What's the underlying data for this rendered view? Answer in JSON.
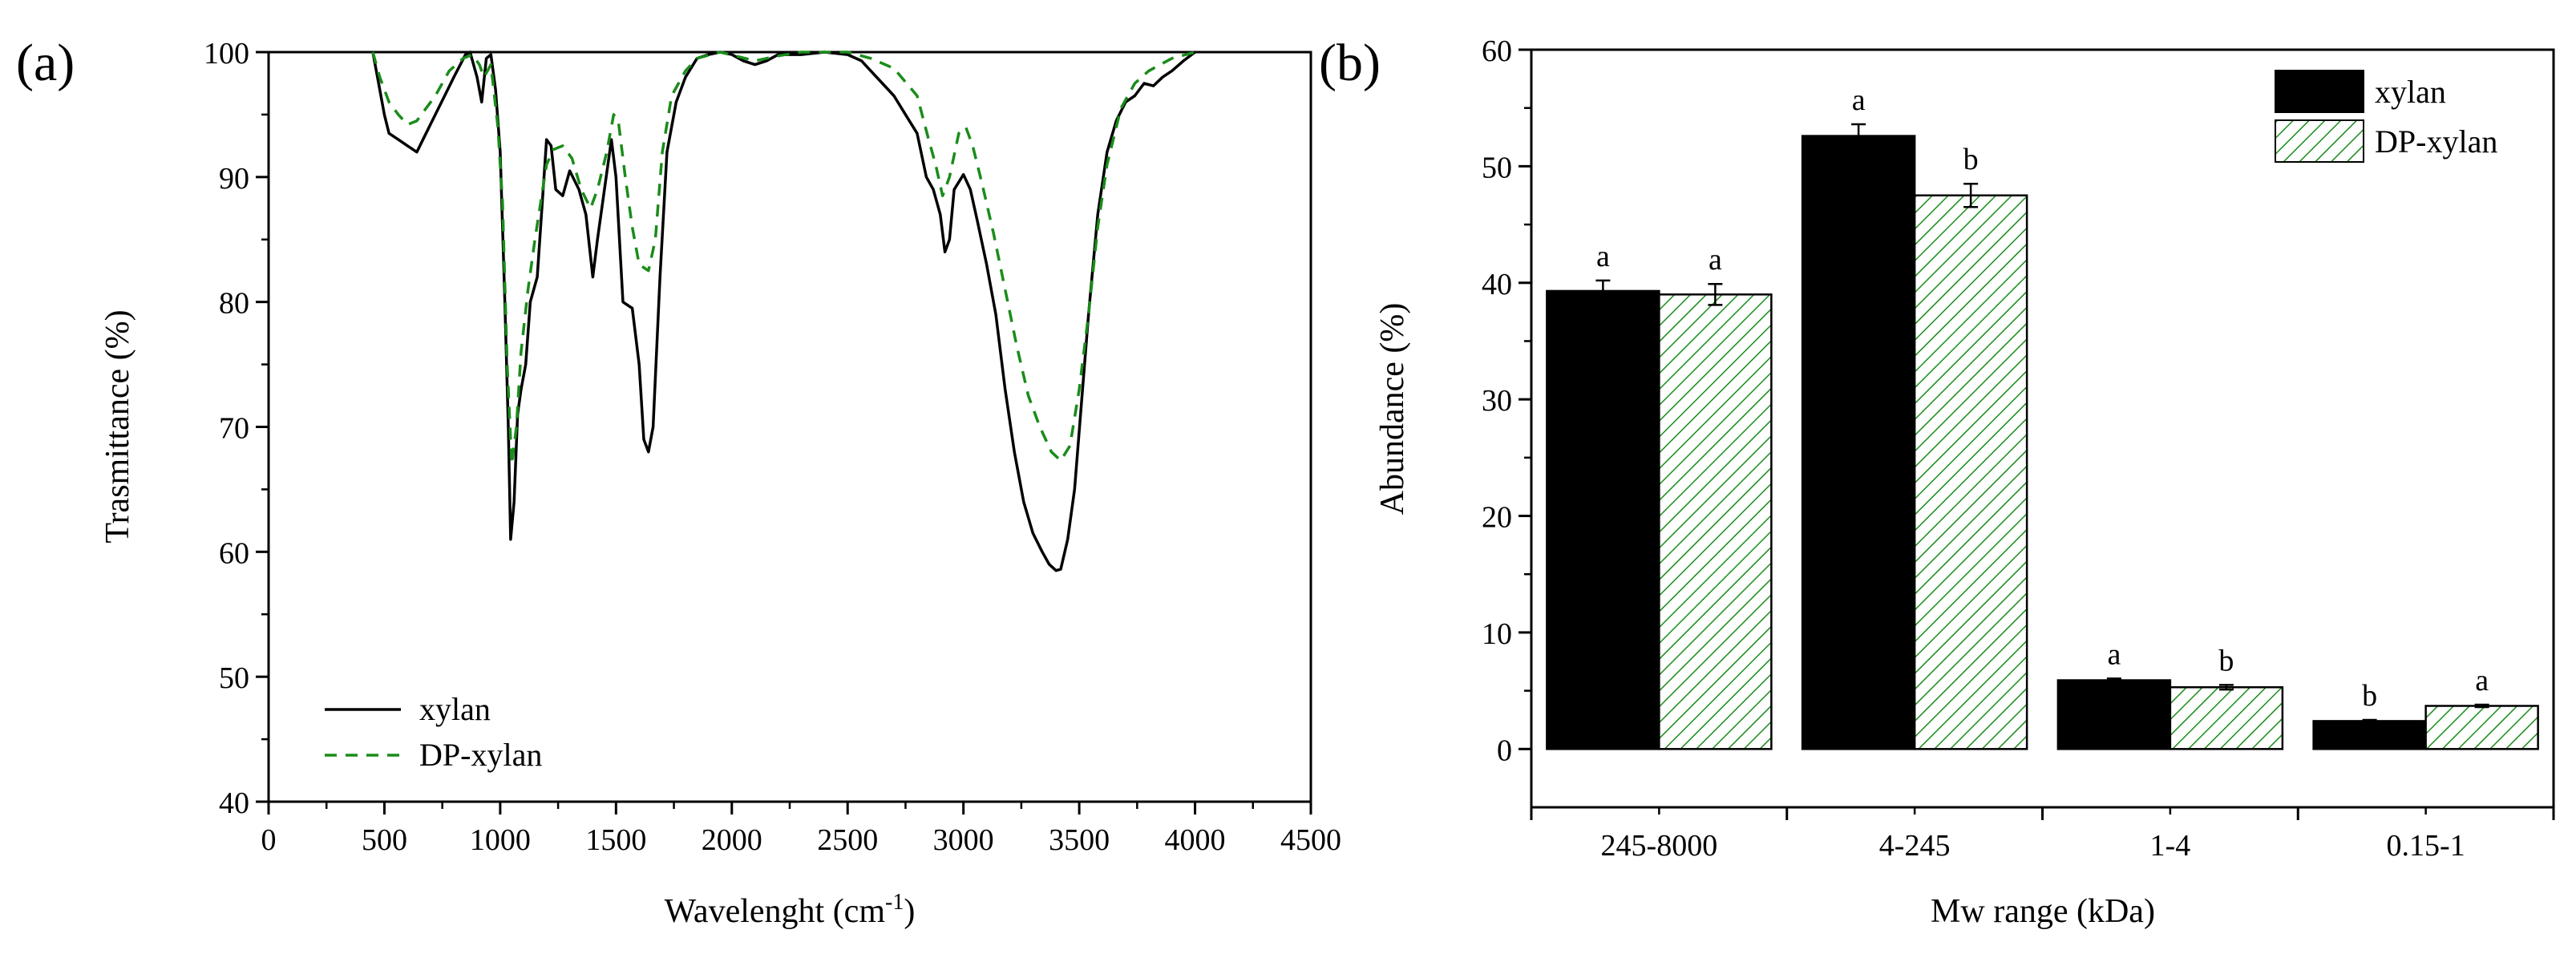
{
  "chart_data": [
    {
      "panel_label": "(a)",
      "type": "line",
      "xlabel": "Wavelenght (cm",
      "xlabel_sup": "-1",
      "xlabel_close": ")",
      "ylabel": "Trasmittance (%)",
      "xlim": [
        0,
        4500
      ],
      "ylim": [
        40,
        100
      ],
      "xticks": [
        0,
        500,
        1000,
        1500,
        2000,
        2500,
        3000,
        3500,
        4000,
        4500
      ],
      "yticks": [
        40,
        50,
        60,
        70,
        80,
        90,
        100
      ],
      "legend_position": "bottom-left",
      "series": [
        {
          "name": "xylan",
          "color": "#000000",
          "dash": "solid",
          "points": [
            [
              450,
              100
            ],
            [
              470,
              98
            ],
            [
              500,
              95
            ],
            [
              520,
              93.5
            ],
            [
              560,
              93
            ],
            [
              600,
              92.5
            ],
            [
              640,
              92
            ],
            [
              680,
              93.5
            ],
            [
              720,
              95
            ],
            [
              760,
              96.5
            ],
            [
              800,
              98
            ],
            [
              850,
              99.8
            ],
            [
              870,
              100
            ],
            [
              900,
              98
            ],
            [
              920,
              96
            ],
            [
              940,
              99.5
            ],
            [
              960,
              99.8
            ],
            [
              980,
              97
            ],
            [
              1000,
              92
            ],
            [
              1020,
              80
            ],
            [
              1035,
              70
            ],
            [
              1045,
              61
            ],
            [
              1060,
              64
            ],
            [
              1075,
              71
            ],
            [
              1090,
              73
            ],
            [
              1110,
              75
            ],
            [
              1130,
              80
            ],
            [
              1160,
              82
            ],
            [
              1200,
              93
            ],
            [
              1220,
              92.5
            ],
            [
              1240,
              89
            ],
            [
              1270,
              88.5
            ],
            [
              1300,
              90.5
            ],
            [
              1340,
              89
            ],
            [
              1370,
              87
            ],
            [
              1400,
              82
            ],
            [
              1420,
              85
            ],
            [
              1450,
              89
            ],
            [
              1480,
              93
            ],
            [
              1500,
              90
            ],
            [
              1530,
              80
            ],
            [
              1570,
              79.5
            ],
            [
              1600,
              75
            ],
            [
              1620,
              69
            ],
            [
              1640,
              68
            ],
            [
              1660,
              70
            ],
            [
              1690,
              82
            ],
            [
              1720,
              92
            ],
            [
              1760,
              96
            ],
            [
              1800,
              98
            ],
            [
              1850,
              99.5
            ],
            [
              1900,
              99.8
            ],
            [
              1950,
              100
            ],
            [
              2000,
              99.8
            ],
            [
              2050,
              99.3
            ],
            [
              2100,
              99
            ],
            [
              2150,
              99.3
            ],
            [
              2200,
              99.8
            ],
            [
              2300,
              99.8
            ],
            [
              2400,
              100
            ],
            [
              2500,
              99.8
            ],
            [
              2560,
              99.3
            ],
            [
              2600,
              98.5
            ],
            [
              2650,
              97.5
            ],
            [
              2700,
              96.5
            ],
            [
              2750,
              95
            ],
            [
              2800,
              93.5
            ],
            [
              2840,
              90
            ],
            [
              2870,
              89
            ],
            [
              2900,
              87
            ],
            [
              2920,
              84
            ],
            [
              2940,
              85
            ],
            [
              2960,
              89
            ],
            [
              3000,
              90.2
            ],
            [
              3030,
              89
            ],
            [
              3060,
              86.5
            ],
            [
              3100,
              83
            ],
            [
              3140,
              79
            ],
            [
              3180,
              73
            ],
            [
              3220,
              68
            ],
            [
              3260,
              64
            ],
            [
              3300,
              61.5
            ],
            [
              3340,
              60
            ],
            [
              3370,
              59
            ],
            [
              3400,
              58.5
            ],
            [
              3420,
              58.6
            ],
            [
              3450,
              61
            ],
            [
              3480,
              65
            ],
            [
              3510,
              72
            ],
            [
              3540,
              79
            ],
            [
              3580,
              87
            ],
            [
              3620,
              92
            ],
            [
              3660,
              94.5
            ],
            [
              3700,
              96
            ],
            [
              3740,
              96.5
            ],
            [
              3780,
              97.5
            ],
            [
              3820,
              97.3
            ],
            [
              3860,
              98
            ],
            [
              3900,
              98.5
            ],
            [
              3950,
              99.3
            ],
            [
              4000,
              100
            ]
          ]
        },
        {
          "name": "DP-xylan",
          "color": "#1a8c1a",
          "dash": "dashed",
          "points": [
            [
              450,
              100
            ],
            [
              480,
              98
            ],
            [
              520,
              96
            ],
            [
              560,
              95
            ],
            [
              600,
              94.2
            ],
            [
              640,
              94.5
            ],
            [
              680,
              95.5
            ],
            [
              720,
              96.5
            ],
            [
              780,
              98.5
            ],
            [
              840,
              99.5
            ],
            [
              880,
              99.8
            ],
            [
              910,
              99
            ],
            [
              930,
              98
            ],
            [
              960,
              99
            ],
            [
              990,
              94
            ],
            [
              1010,
              88
            ],
            [
              1030,
              75
            ],
            [
              1050,
              67
            ],
            [
              1070,
              70
            ],
            [
              1090,
              76
            ],
            [
              1120,
              81
            ],
            [
              1150,
              85
            ],
            [
              1200,
              91
            ],
            [
              1230,
              92.2
            ],
            [
              1270,
              92.5
            ],
            [
              1310,
              91.5
            ],
            [
              1350,
              89
            ],
            [
              1390,
              87.5
            ],
            [
              1420,
              89
            ],
            [
              1460,
              92
            ],
            [
              1490,
              95
            ],
            [
              1510,
              94.5
            ],
            [
              1540,
              90
            ],
            [
              1570,
              86
            ],
            [
              1600,
              83
            ],
            [
              1640,
              82.5
            ],
            [
              1670,
              85
            ],
            [
              1700,
              92
            ],
            [
              1740,
              96.5
            ],
            [
              1800,
              98.5
            ],
            [
              1850,
              99.5
            ],
            [
              1950,
              100
            ],
            [
              2100,
              99.3
            ],
            [
              2200,
              99.7
            ],
            [
              2300,
              100
            ],
            [
              2500,
              100
            ],
            [
              2600,
              99.5
            ],
            [
              2700,
              98.7
            ],
            [
              2800,
              96.5
            ],
            [
              2850,
              93
            ],
            [
              2880,
              91
            ],
            [
              2910,
              88.5
            ],
            [
              2940,
              90
            ],
            [
              2980,
              93.5
            ],
            [
              3010,
              94
            ],
            [
              3040,
              92.5
            ],
            [
              3080,
              89.5
            ],
            [
              3130,
              85.5
            ],
            [
              3180,
              81
            ],
            [
              3230,
              76.5
            ],
            [
              3280,
              72.5
            ],
            [
              3330,
              70
            ],
            [
              3380,
              68
            ],
            [
              3420,
              67.3
            ],
            [
              3460,
              68.5
            ],
            [
              3500,
              73
            ],
            [
              3540,
              79
            ],
            [
              3580,
              86
            ],
            [
              3620,
              91
            ],
            [
              3680,
              95.5
            ],
            [
              3740,
              97.5
            ],
            [
              3800,
              98.5
            ],
            [
              3900,
              99.5
            ],
            [
              4000,
              100
            ]
          ]
        }
      ]
    },
    {
      "panel_label": "(b)",
      "type": "bar",
      "xlabel": "Mw range (kDa)",
      "ylabel": "Abundance (%)",
      "categories": [
        "245-8000",
        "4-245",
        "1-4",
        "0.15-1"
      ],
      "ylim": [
        -5,
        60
      ],
      "yticks": [
        0,
        10,
        20,
        30,
        40,
        50,
        60
      ],
      "legend_position": "top-right",
      "series": [
        {
          "name": "xylan",
          "fill": "solid",
          "color": "#000000",
          "values": [
            39.3,
            52.6,
            5.9,
            2.4
          ],
          "errors": [
            0.9,
            1.0,
            0.15,
            0.1
          ],
          "letters": [
            "a",
            "a",
            "a",
            "b"
          ]
        },
        {
          "name": "DP-xylan",
          "fill": "hatched",
          "color": "#1a8c1a",
          "values": [
            39.0,
            47.5,
            5.3,
            3.7
          ],
          "errors": [
            0.9,
            1.0,
            0.2,
            0.1
          ],
          "letters": [
            "a",
            "b",
            "b",
            "a"
          ]
        }
      ]
    }
  ]
}
